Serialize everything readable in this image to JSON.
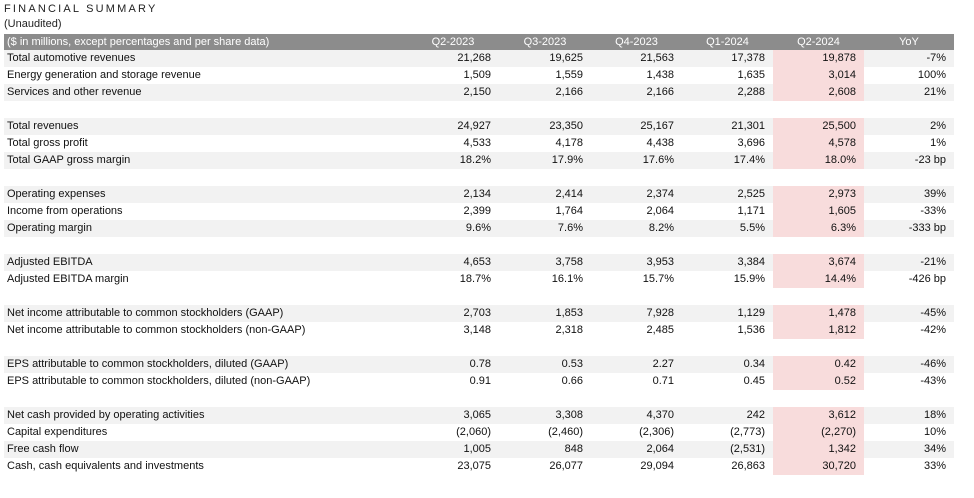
{
  "header": {
    "title": "FINANCIAL SUMMARY",
    "subtitle": "(Unaudited)"
  },
  "table": {
    "columns": [
      "($ in millions, except percentages and per share data)",
      "Q2-2023",
      "Q3-2023",
      "Q4-2023",
      "Q1-2024",
      "Q2-2024",
      "YoY"
    ],
    "rows": [
      {
        "label": "Total automotive revenues",
        "values": [
          "21,268",
          "19,625",
          "21,563",
          "17,378",
          "19,878",
          "-7%"
        ]
      },
      {
        "label": "Energy generation and storage revenue",
        "values": [
          "1,509",
          "1,559",
          "1,438",
          "1,635",
          "3,014",
          "100%"
        ]
      },
      {
        "label": "Services and other revenue",
        "values": [
          "2,150",
          "2,166",
          "2,166",
          "2,288",
          "2,608",
          "21%"
        ]
      },
      {
        "label": "Total revenues",
        "values": [
          "24,927",
          "23,350",
          "25,167",
          "21,301",
          "25,500",
          "2%"
        ]
      },
      {
        "label": "Total gross profit",
        "values": [
          "4,533",
          "4,178",
          "4,438",
          "3,696",
          "4,578",
          "1%"
        ]
      },
      {
        "label": "Total GAAP gross margin",
        "values": [
          "18.2%",
          "17.9%",
          "17.6%",
          "17.4%",
          "18.0%",
          "-23 bp"
        ]
      },
      {
        "label": "Operating expenses",
        "values": [
          "2,134",
          "2,414",
          "2,374",
          "2,525",
          "2,973",
          "39%"
        ]
      },
      {
        "label": "Income from operations",
        "values": [
          "2,399",
          "1,764",
          "2,064",
          "1,171",
          "1,605",
          "-33%"
        ]
      },
      {
        "label": "Operating margin",
        "values": [
          "9.6%",
          "7.6%",
          "8.2%",
          "5.5%",
          "6.3%",
          "-333 bp"
        ]
      },
      {
        "label": "Adjusted EBITDA",
        "values": [
          "4,653",
          "3,758",
          "3,953",
          "3,384",
          "3,674",
          "-21%"
        ]
      },
      {
        "label": "Adjusted EBITDA margin",
        "values": [
          "18.7%",
          "16.1%",
          "15.7%",
          "15.9%",
          "14.4%",
          "-426 bp"
        ]
      },
      {
        "label": "Net income attributable to common stockholders (GAAP)",
        "values": [
          "2,703",
          "1,853",
          "7,928",
          "1,129",
          "1,478",
          "-45%"
        ]
      },
      {
        "label": "Net income attributable to common stockholders (non-GAAP)",
        "values": [
          "3,148",
          "2,318",
          "2,485",
          "1,536",
          "1,812",
          "-42%"
        ]
      },
      {
        "label": "EPS attributable to common stockholders, diluted (GAAP)",
        "values": [
          "0.78",
          "0.53",
          "2.27",
          "0.34",
          "0.42",
          "-46%"
        ]
      },
      {
        "label": "EPS attributable to common stockholders, diluted (non-GAAP)",
        "values": [
          "0.91",
          "0.66",
          "0.71",
          "0.45",
          "0.52",
          "-43%"
        ]
      },
      {
        "label": "Net cash provided by operating activities",
        "values": [
          "3,065",
          "3,308",
          "4,370",
          "242",
          "3,612",
          "18%"
        ]
      },
      {
        "label": "Capital expenditures",
        "values": [
          "(2,060)",
          "(2,460)",
          "(2,306)",
          "(2,773)",
          "(2,270)",
          "10%"
        ]
      },
      {
        "label": "Free cash flow",
        "values": [
          "1,005",
          "848",
          "2,064",
          "(2,531)",
          "1,342",
          "34%"
        ]
      },
      {
        "label": "Cash, cash equivalents and investments",
        "values": [
          "23,075",
          "26,077",
          "29,094",
          "26,863",
          "30,720",
          "33%"
        ]
      }
    ]
  },
  "colors": {
    "header_bg": "#8c8c8c",
    "row_shade": "#f2f2f2",
    "highlight_column": "#f8dcdc"
  }
}
